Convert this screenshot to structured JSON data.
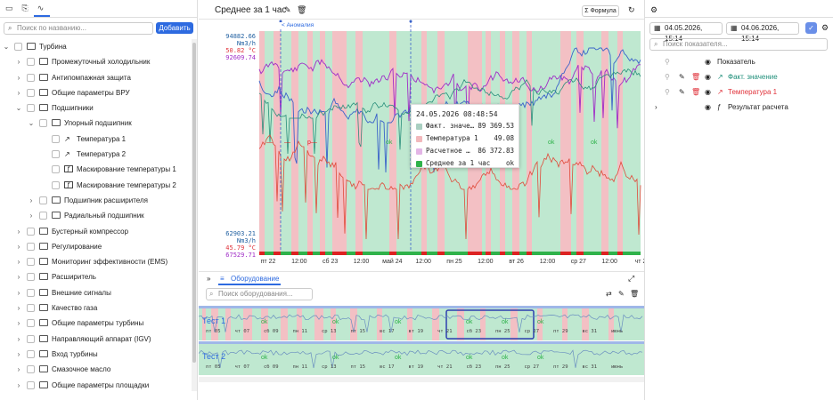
{
  "left": {
    "search_placeholder": "Поиск по названию...",
    "add_button": "Добавить",
    "tree": [
      {
        "label": "Турбина",
        "level": 0,
        "chev": "down",
        "icon": "folder"
      },
      {
        "label": "Промежуточный холодильник",
        "level": 1,
        "chev": "right",
        "icon": "folder"
      },
      {
        "label": "Антипомпажная защита",
        "level": 1,
        "chev": "right",
        "icon": "folder"
      },
      {
        "label": "Общие параметры ВРУ",
        "level": 1,
        "chev": "right",
        "icon": "folder"
      },
      {
        "label": "Подшипники",
        "level": 1,
        "chev": "down",
        "icon": "folder"
      },
      {
        "label": "Упорный подшипник",
        "level": 2,
        "chev": "down",
        "icon": "folder"
      },
      {
        "label": "Температура 1",
        "level": 3,
        "chev": "",
        "icon": "chart"
      },
      {
        "label": "Температура 2",
        "level": 3,
        "chev": "",
        "icon": "chart"
      },
      {
        "label": "Маскирование температуры 1",
        "level": 3,
        "chev": "",
        "icon": "func"
      },
      {
        "label": "Маскирование температуры 2",
        "level": 3,
        "chev": "",
        "icon": "func"
      },
      {
        "label": "Подшипник расширителя",
        "level": 2,
        "chev": "right",
        "icon": "folder"
      },
      {
        "label": "Радиальный подшипник",
        "level": 2,
        "chev": "right",
        "icon": "folder"
      },
      {
        "label": "Бустерный компрессор",
        "level": 1,
        "chev": "right",
        "icon": "folder"
      },
      {
        "label": "Регулирование",
        "level": 1,
        "chev": "right",
        "icon": "folder"
      },
      {
        "label": "Мониторинг эффективности (EMS)",
        "level": 1,
        "chev": "right",
        "icon": "folder"
      },
      {
        "label": "Расширитель",
        "level": 1,
        "chev": "right",
        "icon": "folder"
      },
      {
        "label": "Внешние сигналы",
        "level": 1,
        "chev": "right",
        "icon": "folder"
      },
      {
        "label": "Качество газа",
        "level": 1,
        "chev": "right",
        "icon": "folder"
      },
      {
        "label": "Общие параметры турбины",
        "level": 1,
        "chev": "right",
        "icon": "folder"
      },
      {
        "label": "Направляющий аппарат (IGV)",
        "level": 1,
        "chev": "right",
        "icon": "folder"
      },
      {
        "label": "Вход турбины",
        "level": 1,
        "chev": "right",
        "icon": "folder"
      },
      {
        "label": "Смазочное масло",
        "level": 1,
        "chev": "right",
        "icon": "folder"
      },
      {
        "label": "Общие параметры площадки",
        "level": 1,
        "chev": "right",
        "icon": "folder"
      }
    ]
  },
  "center": {
    "title": "Среднее за 1 час",
    "formula_button": "Σ Формула",
    "anomaly_tag": "< Аномалия",
    "y_top": {
      "v1": "94882.66 Nm3/h",
      "v2": "50.82 °C",
      "v3": "92609.74"
    },
    "y_bottom": {
      "v1": "62903.21 Nm3/h",
      "v2": "45.79 °C",
      "v3": "67529.71"
    },
    "x_ticks": [
      "пт 22",
      "12:00",
      "сб 23",
      "12:00",
      "май 24",
      "12:00",
      "пн 25",
      "12:00",
      "вт 26",
      "12:00",
      "ср 27",
      "12:00",
      "чт 2"
    ],
    "ok_label": "ok",
    "dash_label": "—",
    "p_label": "p—",
    "tooltip": {
      "timestamp": "24.05.2026 08:48:54",
      "rows": [
        {
          "name": "Факт. значе…",
          "value": "89 369.53",
          "color": "#a9cfc1"
        },
        {
          "name": "Температура 1",
          "value": "49.08",
          "color": "#f2b8bc"
        },
        {
          "name": "Расчетное …",
          "value": "86 372.83",
          "color": "#e3b5e6"
        },
        {
          "name": "Среднее за 1 час",
          "value": "ok",
          "color": "#2fb24a"
        }
      ]
    },
    "equipment": {
      "tab_label": "Оборудование",
      "search_placeholder": "Поиск оборудования...",
      "lanes": [
        {
          "name": "Тест 1",
          "ticks": [
            "пт 05",
            "чт 07",
            "сб 09",
            "пн 11",
            "ср 13",
            "пт 15",
            "вс 17",
            "вт 19",
            "чт 21",
            "сб 23",
            "пн 25",
            "ср 27",
            "пт 29",
            "вс 31",
            "июнь"
          ]
        },
        {
          "name": "Тест 2",
          "ticks": [
            "пт 05",
            "чт 07",
            "сб 09",
            "пн 11",
            "ср 13",
            "пт 15",
            "вс 17",
            "вт 19",
            "чт 21",
            "сб 23",
            "пн 25",
            "ср 27",
            "пт 29",
            "вс 31",
            "июнь"
          ]
        }
      ]
    }
  },
  "right": {
    "date_from": "04.05.2026, 15:14",
    "date_to": "04.06.2026, 15:14",
    "search_placeholder": "Поиск показателя...",
    "header_label": "Показатель",
    "indicators": [
      {
        "label": "Факт. значение",
        "color": "#1f8f7a"
      },
      {
        "label": "Температура 1",
        "color": "#e0323a"
      },
      {
        "label": "Результат расчета",
        "color": "#222222"
      }
    ]
  },
  "colors": {
    "accent": "#2d6ae0",
    "ok_green": "#2fb24a",
    "anomaly_red": "#f2b8bc",
    "teal": "#2a8f7b",
    "purple": "#8a2ed6",
    "blue": "#3b63c9",
    "red_line": "#e04a3a"
  }
}
